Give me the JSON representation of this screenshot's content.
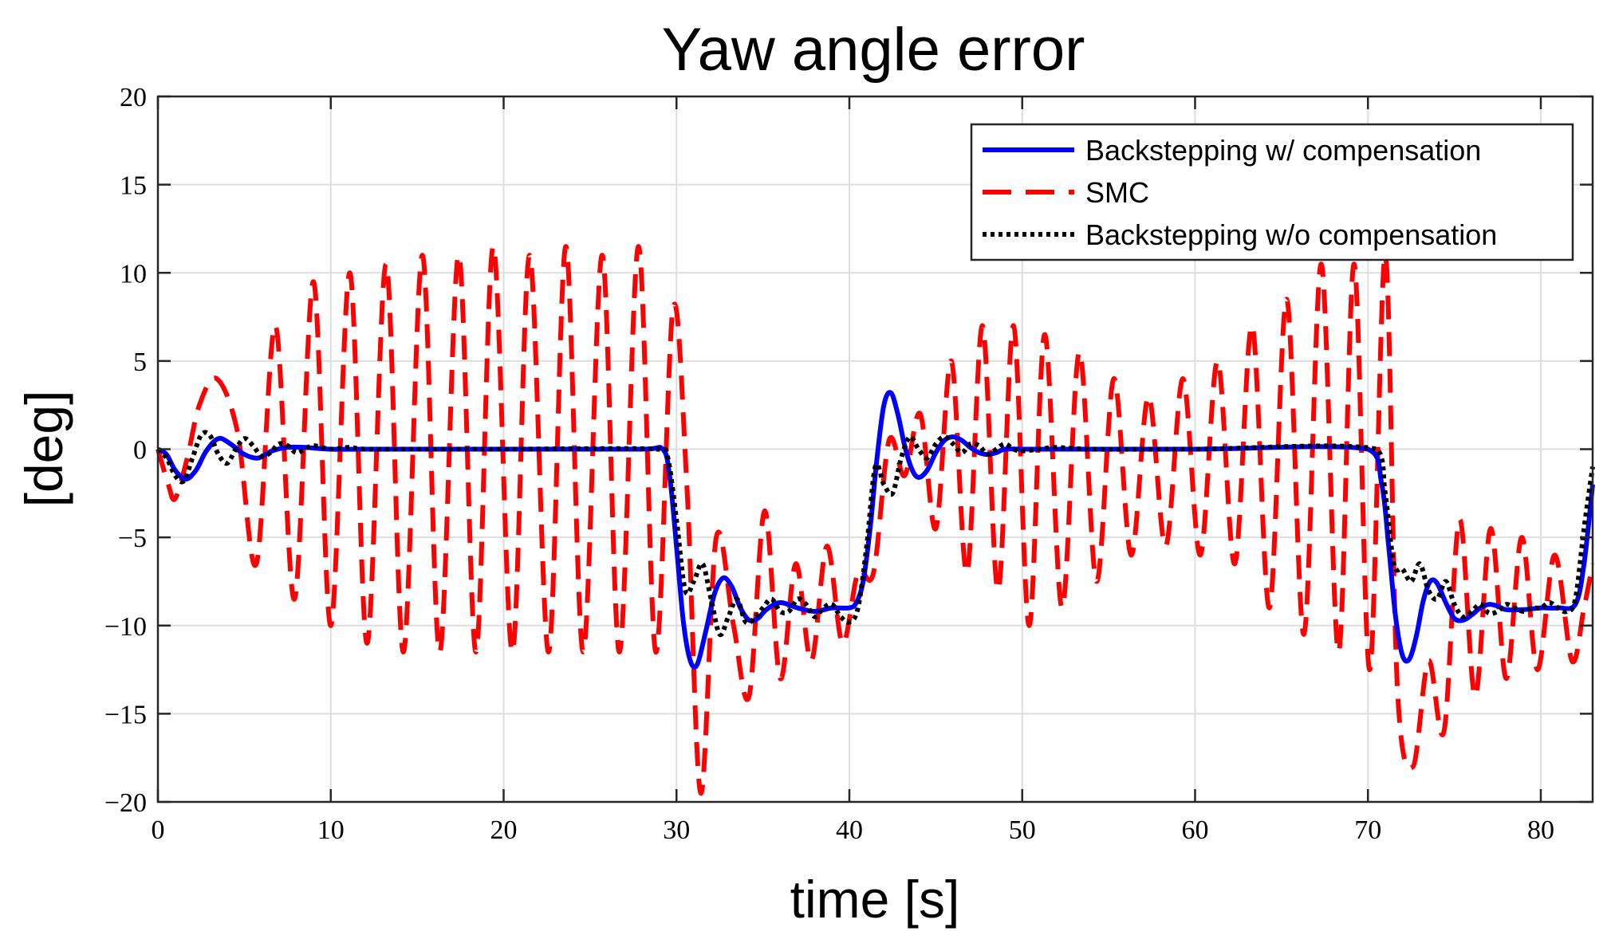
{
  "chart_data": {
    "type": "line",
    "title": "Yaw angle error",
    "xlabel": "time [s]",
    "ylabel": "[deg]",
    "xlim": [
      0,
      83
    ],
    "ylim": [
      -20,
      20
    ],
    "xticks": [
      0,
      10,
      20,
      30,
      40,
      50,
      60,
      70,
      80
    ],
    "xtick_labels": [
      "0",
      "10",
      "20",
      "30",
      "40",
      "50",
      "60",
      "70",
      "80"
    ],
    "yticks": [
      -20,
      -15,
      -10,
      -5,
      0,
      5,
      10,
      15,
      20
    ],
    "ytick_labels": [
      "−20",
      "−15",
      "−10",
      "−5",
      "0",
      "5",
      "10",
      "15",
      "20"
    ],
    "grid": true,
    "legend_position": "top-right",
    "series": [
      {
        "name": "Backstepping w/ compensation",
        "color": "#0000ff",
        "style": "solid",
        "x": [
          0,
          0.5,
          1,
          1.6,
          2.2,
          2.8,
          3.5,
          4.2,
          5,
          5.8,
          6.6,
          7.5,
          8.5,
          10,
          12,
          20,
          28,
          29.2,
          29.6,
          30,
          30.4,
          30.8,
          31.2,
          31.7,
          32.2,
          32.7,
          33.2,
          33.7,
          34.2,
          34.7,
          35.2,
          36,
          37,
          38,
          39,
          40,
          40.4,
          40.8,
          41.2,
          41.6,
          42,
          42.4,
          42.8,
          43.2,
          43.6,
          44,
          44.5,
          45,
          45.5,
          46,
          46.5,
          47,
          47.5,
          48,
          48.5,
          49,
          50,
          52,
          60,
          70,
          70.8,
          71.2,
          71.6,
          72,
          72.4,
          72.8,
          73.2,
          73.6,
          74,
          74.5,
          75,
          75.5,
          76,
          76.5,
          77,
          77.5,
          78,
          79,
          80,
          81,
          82,
          82.5,
          83
        ],
        "y": [
          0,
          -0.3,
          -1.2,
          -1.7,
          -1.2,
          -0.1,
          0.6,
          0.3,
          -0.3,
          -0.5,
          -0.1,
          0.1,
          0.1,
          0,
          0,
          0,
          0,
          0,
          -1.5,
          -5.5,
          -9.8,
          -12,
          -12.2,
          -10.3,
          -8.2,
          -7.3,
          -7.8,
          -9,
          -9.7,
          -9.6,
          -9.1,
          -8.7,
          -9,
          -9.2,
          -9,
          -9,
          -8.7,
          -7.5,
          -4.5,
          -0.5,
          2.5,
          3.2,
          2,
          0.2,
          -1.1,
          -1.6,
          -1.2,
          -0.2,
          0.5,
          0.7,
          0.5,
          0.1,
          -0.2,
          -0.3,
          -0.2,
          0,
          0,
          0,
          0,
          0,
          -2,
          -5.5,
          -9.5,
          -11.7,
          -11.9,
          -10.6,
          -8.6,
          -7.5,
          -7.6,
          -8.7,
          -9.6,
          -9.7,
          -9.4,
          -9,
          -8.8,
          -8.9,
          -9.1,
          -9.1,
          -9,
          -9,
          -8.8,
          -6.5,
          -2
        ]
      },
      {
        "name": "SMC",
        "color": "#ff0000",
        "style": "dashed",
        "x": [
          0,
          0.6,
          1,
          1.7,
          2.4,
          3.4,
          4.6,
          5.7,
          6.8,
          7.9,
          9,
          10,
          11.1,
          12.1,
          13.2,
          14.2,
          15.3,
          16.3,
          17.4,
          18.4,
          19.4,
          20.5,
          21.5,
          22.6,
          23.6,
          24.6,
          25.7,
          26.7,
          27.8,
          28.8,
          29.8,
          30.6,
          31.4,
          32.3,
          33.3,
          34.2,
          35.1,
          36,
          36.9,
          37.8,
          38.7,
          39.6,
          40.5,
          41.4,
          42.3,
          43.2,
          44.1,
          45,
          45.9,
          46.8,
          47.7,
          48.6,
          49.5,
          50.4,
          51.3,
          52.3,
          53.3,
          54.3,
          55.3,
          56.3,
          57.3,
          58.3,
          59.3,
          60.3,
          61.3,
          62.3,
          63.3,
          64.3,
          65.3,
          66.3,
          67.3,
          68.3,
          69.2,
          70.1,
          71,
          71.7,
          72.6,
          73.5,
          74.4,
          75.3,
          76.2,
          77.1,
          78,
          78.9,
          79.8,
          80.8,
          81.8,
          82.5,
          83
        ],
        "y": [
          0,
          -2,
          -2.8,
          -0.5,
          2.5,
          4,
          1,
          -6.5,
          7,
          -8.5,
          9.5,
          -10,
          10,
          -11,
          10.5,
          -11.5,
          11,
          -11.5,
          11,
          -11.5,
          11.5,
          -11.5,
          11,
          -11.5,
          11.5,
          -11.5,
          11,
          -11.5,
          11.5,
          -11.5,
          8,
          -2,
          -19.5,
          -5,
          -10,
          -14,
          -3.5,
          -13,
          -6.5,
          -12,
          -5.5,
          -11,
          -7,
          -7,
          0.5,
          -1.5,
          2,
          -4.5,
          5,
          -7,
          7,
          -8,
          7,
          -10,
          6.5,
          -9,
          5.5,
          -7.5,
          4,
          -6,
          3,
          -5.5,
          4,
          -6,
          5,
          -6.5,
          7,
          -9,
          8.5,
          -10.5,
          10.5,
          -11.5,
          10.5,
          -12.5,
          11,
          -13.5,
          -18,
          -12,
          -16,
          -4,
          -14,
          -4.5,
          -13,
          -5,
          -12.5,
          -6,
          -12,
          -9,
          -6.5
        ]
      },
      {
        "name": "Backstepping w/o compensation",
        "color": "#000000",
        "style": "dotted",
        "x": [
          0,
          0.5,
          1,
          1.5,
          2,
          2.5,
          3,
          3.5,
          4,
          4.5,
          5,
          5.5,
          6,
          6.5,
          7,
          7.5,
          8,
          8.5,
          9,
          10,
          11,
          12,
          14,
          20,
          29,
          29.5,
          30,
          30.5,
          31,
          31.5,
          32,
          32.5,
          33,
          33.5,
          34,
          34.5,
          35,
          35.5,
          36,
          36.5,
          37,
          37.5,
          38,
          38.5,
          39,
          39.5,
          40,
          40.5,
          41,
          41.5,
          42,
          42.5,
          43,
          43.5,
          44,
          44.5,
          45,
          45.5,
          46,
          46.5,
          47,
          47.5,
          48,
          48.5,
          49,
          49.5,
          50,
          51,
          52,
          54,
          60,
          70.5,
          71,
          71.5,
          72,
          72.5,
          73,
          73.5,
          74,
          74.5,
          75,
          75.5,
          76,
          76.5,
          77,
          77.5,
          78,
          78.5,
          79,
          79.5,
          80,
          80.5,
          81,
          81.5,
          82,
          82.5,
          83
        ],
        "y": [
          0,
          -0.5,
          -1.5,
          -1.8,
          -0.5,
          0.8,
          0.8,
          -0.3,
          -0.8,
          0,
          0.6,
          0.2,
          -0.4,
          -0.2,
          0.3,
          0.2,
          -0.2,
          0,
          0.2,
          0,
          0.1,
          0,
          0,
          0,
          0,
          -0.5,
          -4,
          -8,
          -7.5,
          -6.5,
          -8.5,
          -10.5,
          -9.5,
          -8.5,
          -9.8,
          -9.6,
          -9,
          -8.5,
          -9.2,
          -9.2,
          -8.5,
          -8.8,
          -9.5,
          -9,
          -8.8,
          -9.5,
          -9.8,
          -9,
          -5.5,
          -1,
          -2,
          -2.5,
          -0.5,
          0.7,
          0,
          -0.5,
          0.3,
          0.7,
          0.3,
          -0.2,
          0.3,
          0.2,
          -0.3,
          0,
          0.3,
          0,
          -0.1,
          0,
          0.1,
          0,
          0,
          0,
          -2.5,
          -6.5,
          -6.8,
          -7.5,
          -6.5,
          -8,
          -8.5,
          -7.5,
          -8.8,
          -9.5,
          -9.2,
          -8.8,
          -9.3,
          -9.2,
          -8.8,
          -9,
          -9.2,
          -9,
          -9,
          -8.7,
          -9,
          -9.2,
          -8.5,
          -4.5,
          -1
        ]
      }
    ]
  }
}
